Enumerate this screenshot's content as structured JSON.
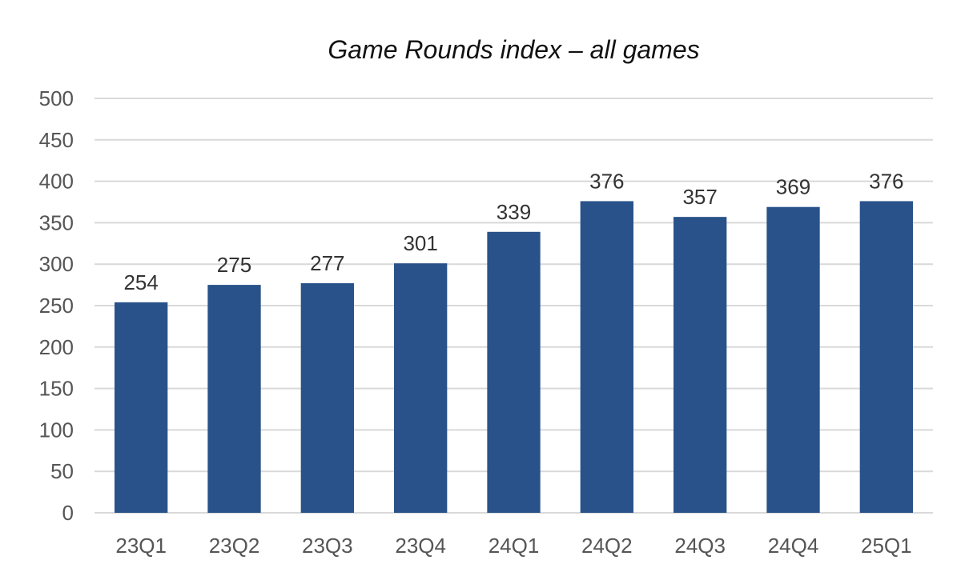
{
  "chart_data": {
    "type": "bar",
    "title": "Game Rounds index – all games",
    "categories": [
      "23Q1",
      "23Q2",
      "23Q3",
      "23Q4",
      "24Q1",
      "24Q2",
      "24Q3",
      "24Q4",
      "25Q1"
    ],
    "values": [
      254,
      275,
      277,
      301,
      339,
      376,
      357,
      369,
      376
    ],
    "data_labels": [
      "254",
      "275",
      "277",
      "301",
      "339",
      "376",
      "357",
      "369",
      "376"
    ],
    "ylim": [
      0,
      500
    ],
    "yticks": [
      0,
      50,
      100,
      150,
      200,
      250,
      300,
      350,
      400,
      450,
      500
    ],
    "grid": true,
    "legend": "none",
    "colors": {
      "bar": "#285289",
      "grid": "#d9d9d9"
    }
  }
}
